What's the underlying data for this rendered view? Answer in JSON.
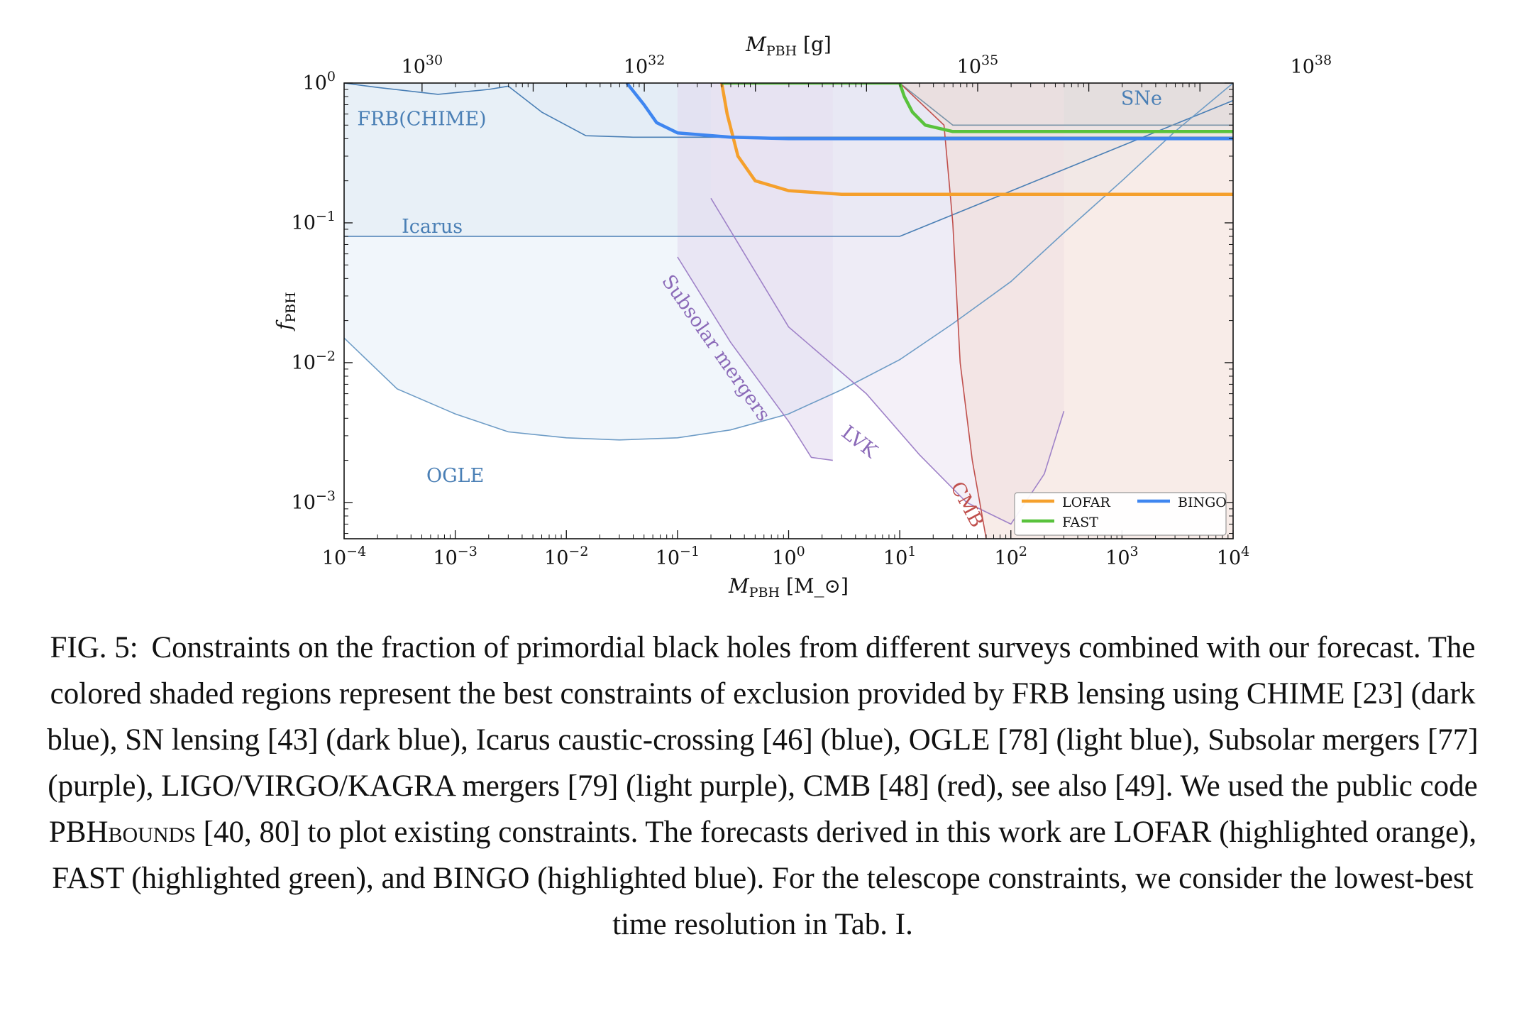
{
  "chart_data": {
    "type": "area",
    "xlabel": "M_PBH [M_⊙]",
    "top_xlabel": "M_PBH [g]",
    "ylabel": "f_PBH",
    "x_scale": "log",
    "y_scale": "log",
    "xlim": [
      0.0001,
      10000
    ],
    "ylim": [
      0.00055,
      1
    ],
    "x_ticks": [
      {
        "value": 0.0001,
        "label": "10^-4"
      },
      {
        "value": 0.001,
        "label": "10^-3"
      },
      {
        "value": 0.01,
        "label": "10^-2"
      },
      {
        "value": 0.1,
        "label": "10^-1"
      },
      {
        "value": 1,
        "label": "10^0"
      },
      {
        "value": 10,
        "label": "10^1"
      },
      {
        "value": 100,
        "label": "10^2"
      },
      {
        "value": 1000,
        "label": "10^3"
      },
      {
        "value": 10000,
        "label": "10^4"
      }
    ],
    "top_x_ticks": [
      {
        "value": 1e+30,
        "label": "10^30"
      },
      {
        "value": 1e+32,
        "label": "10^32"
      },
      {
        "value": 1e+35,
        "label": "10^35"
      },
      {
        "value": 1e+38,
        "label": "10^38"
      }
    ],
    "y_ticks": [
      {
        "value": 1,
        "label": "10^0"
      },
      {
        "value": 0.1,
        "label": "10^-1"
      },
      {
        "value": 0.01,
        "label": "10^-2"
      },
      {
        "value": 0.001,
        "label": "10^-3"
      }
    ],
    "constraints": [
      {
        "name": "FRB(CHIME)",
        "color": "#4a7fb5",
        "fill": "#dde7f1",
        "x": [
          0.0001,
          0.0002,
          0.0007,
          0.002,
          0.003,
          0.006,
          0.015,
          0.04,
          0.3,
          10,
          100,
          10000
        ],
        "y": [
          1,
          0.93,
          0.83,
          0.9,
          0.95,
          0.62,
          0.42,
          0.41,
          0.41,
          0.41,
          0.41,
          0.41
        ]
      },
      {
        "name": "Icarus",
        "color": "#4a7fb5",
        "fill": "#dde7f1",
        "x": [
          0.0001,
          10,
          10000
        ],
        "y": [
          0.08,
          0.08,
          0.75
        ]
      },
      {
        "name": "OGLE",
        "color": "#6e9cc6",
        "fill": "#e6eef7",
        "x": [
          0.0001,
          0.0003,
          0.001,
          0.003,
          0.01,
          0.03,
          0.1,
          0.3,
          1,
          3,
          10,
          30,
          100,
          300,
          1000,
          3000,
          10000
        ],
        "y": [
          0.015,
          0.0065,
          0.0043,
          0.0032,
          0.0029,
          0.0028,
          0.0029,
          0.0033,
          0.0043,
          0.0064,
          0.0105,
          0.019,
          0.038,
          0.085,
          0.2,
          0.45,
          1.0
        ]
      },
      {
        "name": "SNe",
        "color": "#7b94a8",
        "fill": "#c5d3dc",
        "x": [
          10,
          30,
          100,
          10000
        ],
        "y": [
          1,
          0.5,
          0.5,
          0.5
        ]
      },
      {
        "name": "Subsolar mergers",
        "color": "#9f82c8",
        "fill": "#e2d9ef",
        "x": [
          0.1,
          0.3,
          1,
          1.6,
          2.5
        ],
        "y": [
          0.057,
          0.014,
          0.0038,
          0.0021,
          0.002
        ]
      },
      {
        "name": "LVK",
        "color": "#9f82c8",
        "fill": "#ebe4f3",
        "x": [
          0.2,
          1,
          5,
          15,
          40,
          100,
          200,
          300
        ],
        "y": [
          0.15,
          0.018,
          0.006,
          0.0022,
          0.001,
          0.0007,
          0.0016,
          0.0045
        ]
      },
      {
        "name": "CMB",
        "color": "#c0504d",
        "fill": "#f3dcd6",
        "x": [
          10,
          25,
          30,
          35,
          45,
          60
        ],
        "y": [
          1,
          0.5,
          0.1,
          0.01,
          0.002,
          0.00055
        ]
      }
    ],
    "forecasts": [
      {
        "name": "LOFAR",
        "color": "#f5a02c",
        "x": [
          0.25,
          0.28,
          0.35,
          0.5,
          1,
          3,
          10,
          100,
          1000,
          10000
        ],
        "y": [
          1,
          0.6,
          0.3,
          0.2,
          0.17,
          0.16,
          0.16,
          0.16,
          0.16,
          0.16
        ]
      },
      {
        "name": "FAST",
        "color": "#59c23c",
        "x": [
          0.25,
          10,
          11,
          13,
          17,
          30,
          100,
          10000
        ],
        "y": [
          1,
          1,
          0.8,
          0.62,
          0.5,
          0.45,
          0.45,
          0.45
        ]
      },
      {
        "name": "BINGO",
        "color": "#3f86f0",
        "x": [
          0.035,
          0.05,
          0.065,
          0.1,
          0.3,
          1,
          100,
          10000
        ],
        "y": [
          1,
          0.7,
          0.52,
          0.44,
          0.41,
          0.4,
          0.4,
          0.4
        ]
      }
    ],
    "annotations": [
      "FRB(CHIME)",
      "Icarus",
      "OGLE",
      "SNe",
      "Subsolar mergers",
      "LVK",
      "CMB"
    ],
    "legend": {
      "position": "bottom-right",
      "entries": [
        "LOFAR",
        "BINGO",
        "FAST"
      ]
    }
  },
  "caption": {
    "label": "FIG. 5:",
    "text_a": "Constraints on the fraction of primordial black holes from different surveys combined with our forecast. The colored shaded regions represent the best constraints of exclusion provided by FRB lensing using CHIME [23] (dark blue), SN lensing [43] (dark blue), Icarus caustic-crossing [46] (blue), OGLE [78] (light blue), Subsolar mergers [77] (purple), LIGO/VIRGO/KAGRA mergers [79] (light purple), CMB [48] (red), see also [49]. We used the public code",
    "code_name": "PBHbounds",
    "text_b": "[40, 80] to plot existing constraints. The forecasts derived in this work are LOFAR (highlighted orange), FAST (highlighted green), and BINGO (highlighted blue). For the telescope constraints, we consider the lowest-best time resolution in Tab. I."
  }
}
